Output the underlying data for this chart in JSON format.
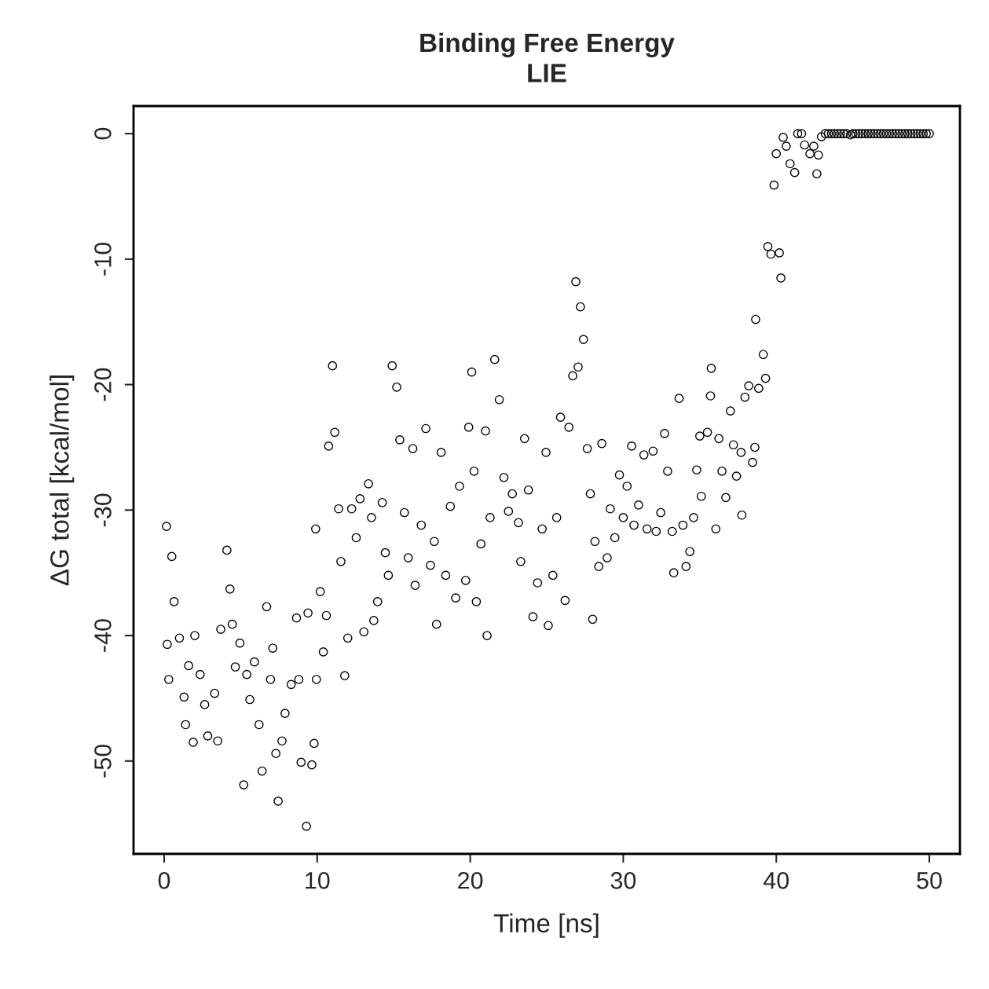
{
  "chart_data": {
    "type": "scatter",
    "title": "Binding Free Energy\nLIE",
    "xlabel": "Time [ns]",
    "ylabel": "ΔG total [kcal/mol]",
    "xlim": [
      -2,
      52
    ],
    "ylim": [
      -57.4,
      2.2
    ],
    "xticks": [
      0,
      10,
      20,
      30,
      40,
      50
    ],
    "yticks": [
      0,
      -10,
      -20,
      -30,
      -40,
      -50
    ],
    "marker": "circle",
    "grid": false,
    "series": [
      {
        "color": "#000000",
        "x": [
          0.15,
          0.2,
          0.3,
          0.5,
          0.65,
          1.0,
          1.3,
          1.4,
          1.6,
          1.9,
          2.0,
          2.35,
          2.65,
          2.85,
          3.3,
          3.5,
          3.7,
          4.1,
          4.3,
          4.45,
          4.65,
          4.95,
          5.2,
          5.4,
          5.6,
          5.9,
          6.2,
          6.4,
          6.7,
          6.95,
          7.1,
          7.3,
          7.45,
          7.7,
          7.9,
          8.3,
          8.65,
          8.8,
          8.95,
          9.3,
          9.4,
          9.65,
          9.8,
          9.95,
          9.9,
          10.2,
          10.4,
          10.6,
          10.75,
          11.0,
          11.15,
          11.4,
          11.55,
          11.8,
          12.0,
          12.25,
          12.55,
          12.8,
          13.05,
          13.35,
          13.55,
          13.7,
          13.95,
          14.25,
          14.45,
          14.65,
          14.9,
          15.2,
          15.4,
          15.7,
          15.95,
          16.25,
          16.4,
          16.8,
          17.1,
          17.4,
          17.65,
          17.8,
          18.1,
          18.4,
          18.7,
          19.05,
          19.3,
          19.7,
          19.9,
          20.1,
          20.25,
          20.4,
          20.7,
          21.0,
          21.1,
          21.3,
          21.6,
          21.9,
          22.2,
          22.5,
          22.75,
          23.15,
          23.3,
          23.55,
          23.8,
          24.1,
          24.4,
          24.7,
          24.95,
          25.1,
          25.4,
          25.65,
          25.9,
          26.2,
          26.45,
          26.7,
          26.9,
          27.05,
          27.2,
          27.4,
          27.65,
          27.85,
          28.0,
          28.15,
          28.4,
          28.6,
          28.95,
          29.15,
          29.45,
          29.75,
          30.0,
          30.25,
          30.55,
          30.7,
          31.0,
          31.35,
          31.55,
          31.95,
          32.15,
          32.45,
          32.7,
          32.9,
          33.2,
          33.3,
          33.65,
          33.9,
          34.1,
          34.35,
          34.6,
          34.8,
          35.1,
          35.0,
          35.5,
          35.7,
          35.75,
          36.05,
          36.25,
          36.45,
          36.7,
          37.0,
          37.2,
          37.4,
          37.7,
          37.75,
          37.95,
          38.2,
          38.45,
          38.6,
          38.65,
          38.85,
          39.15,
          39.3,
          39.45,
          39.65,
          39.85,
          40.0,
          40.2,
          40.3,
          40.45,
          40.65,
          40.9,
          41.2,
          41.4,
          41.65,
          41.85,
          42.2,
          42.45,
          42.65,
          42.75,
          42.95,
          43.2,
          43.4,
          43.6,
          43.8,
          44.0,
          44.2,
          44.4,
          44.6,
          44.85,
          45.0,
          45.2,
          45.4,
          45.6,
          45.8,
          46.0,
          46.2,
          46.4,
          46.6,
          46.8,
          47.0,
          47.2,
          47.4,
          47.6,
          47.8,
          48.0,
          48.2,
          48.4,
          48.6,
          48.8,
          49.0,
          49.2,
          49.4,
          49.6,
          49.8,
          50.0
        ],
        "values": [
          -31.3,
          -40.7,
          -43.5,
          -33.7,
          -37.3,
          -40.2,
          -44.9,
          -47.1,
          -42.4,
          -48.5,
          -40.0,
          -43.1,
          -45.5,
          -48.0,
          -44.6,
          -48.4,
          -39.5,
          -33.2,
          -36.3,
          -39.1,
          -42.5,
          -40.6,
          -51.9,
          -43.1,
          -45.1,
          -42.1,
          -47.1,
          -50.8,
          -37.7,
          -43.5,
          -41.0,
          -49.4,
          -53.2,
          -48.4,
          -46.2,
          -43.9,
          -38.6,
          -43.5,
          -50.1,
          -55.2,
          -38.2,
          -50.3,
          -48.6,
          -43.5,
          -31.5,
          -36.5,
          -41.3,
          -38.4,
          -24.9,
          -18.5,
          -23.8,
          -29.9,
          -34.1,
          -43.2,
          -40.2,
          -29.9,
          -32.2,
          -29.1,
          -39.7,
          -27.9,
          -30.6,
          -38.8,
          -37.3,
          -29.4,
          -33.4,
          -35.2,
          -18.5,
          -20.2,
          -24.4,
          -30.2,
          -33.8,
          -25.1,
          -36.0,
          -31.2,
          -23.5,
          -34.4,
          -32.5,
          -39.1,
          -25.4,
          -35.2,
          -29.7,
          -37.0,
          -28.1,
          -35.6,
          -23.4,
          -19.0,
          -26.9,
          -37.3,
          -32.7,
          -23.7,
          -40.0,
          -30.6,
          -18.0,
          -21.2,
          -27.4,
          -30.1,
          -28.7,
          -31.0,
          -34.1,
          -24.3,
          -28.4,
          -38.5,
          -35.8,
          -31.5,
          -25.4,
          -39.2,
          -35.2,
          -30.6,
          -22.6,
          -37.2,
          -23.4,
          -19.3,
          -11.8,
          -18.6,
          -13.8,
          -16.4,
          -25.1,
          -28.7,
          -38.7,
          -32.5,
          -34.5,
          -24.7,
          -33.8,
          -29.9,
          -32.2,
          -27.2,
          -30.6,
          -28.1,
          -24.9,
          -31.2,
          -29.6,
          -25.6,
          -31.5,
          -25.3,
          -31.7,
          -30.2,
          -23.9,
          -26.9,
          -31.7,
          -35.0,
          -21.1,
          -31.2,
          -34.5,
          -33.3,
          -30.6,
          -26.8,
          -28.9,
          -24.1,
          -23.8,
          -20.9,
          -18.7,
          -31.5,
          -24.3,
          -26.9,
          -29.0,
          -22.1,
          -24.8,
          -27.3,
          -25.4,
          -30.4,
          -21.0,
          -20.1,
          -26.2,
          -25.0,
          -14.8,
          -20.3,
          -17.6,
          -19.5,
          -9.0,
          -9.6,
          -4.1,
          -1.6,
          -9.5,
          -11.5,
          -0.3,
          -1.0,
          -2.4,
          -3.1,
          0,
          0,
          -0.9,
          -1.6,
          -1.0,
          -3.2,
          -1.7,
          -0.25,
          0,
          0,
          0,
          0,
          0,
          0,
          0,
          0,
          -0.1,
          0,
          0,
          0,
          0,
          0,
          0,
          0,
          0,
          0,
          0,
          0,
          0,
          0,
          0,
          0,
          0,
          0,
          0,
          0,
          0,
          0,
          0,
          0,
          0,
          0,
          0
        ]
      }
    ]
  }
}
